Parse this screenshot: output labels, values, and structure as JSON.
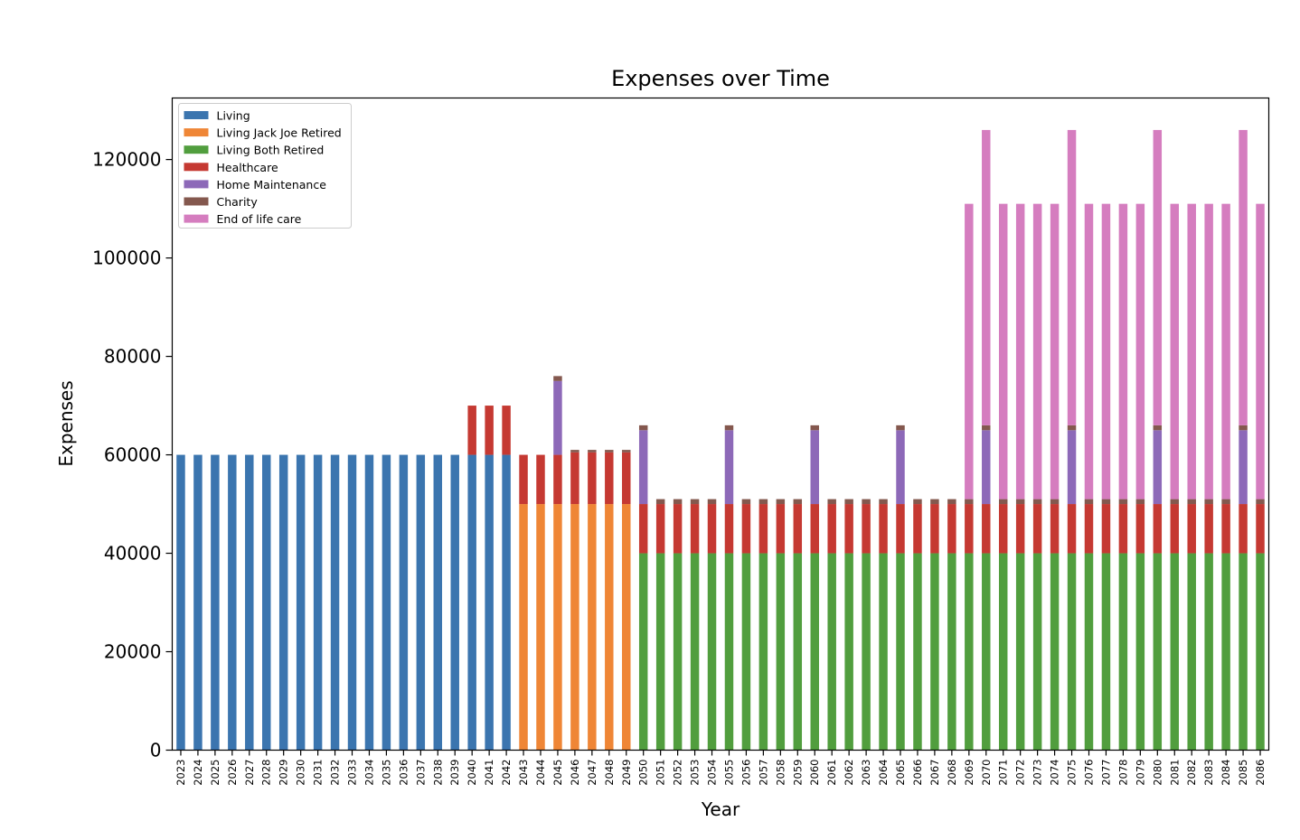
{
  "chart_data": {
    "type": "bar",
    "stacked": true,
    "title": "Expenses over Time",
    "xlabel": "Year",
    "ylabel": "Expenses",
    "ylim": [
      0,
      132500
    ],
    "yticks": [
      0,
      20000,
      40000,
      60000,
      80000,
      100000,
      120000
    ],
    "grid": false,
    "legend_position": "top-left",
    "categories": [
      "2023",
      "2024",
      "2025",
      "2026",
      "2027",
      "2028",
      "2029",
      "2030",
      "2031",
      "2032",
      "2033",
      "2034",
      "2035",
      "2036",
      "2037",
      "2038",
      "2039",
      "2040",
      "2041",
      "2042",
      "2043",
      "2044",
      "2045",
      "2046",
      "2047",
      "2048",
      "2049",
      "2050",
      "2051",
      "2052",
      "2053",
      "2054",
      "2055",
      "2056",
      "2057",
      "2058",
      "2059",
      "2060",
      "2061",
      "2062",
      "2063",
      "2064",
      "2065",
      "2066",
      "2067",
      "2068",
      "2069",
      "2070",
      "2071",
      "2072",
      "2073",
      "2074",
      "2075",
      "2076",
      "2077",
      "2078",
      "2079",
      "2080",
      "2081",
      "2082",
      "2083",
      "2084",
      "2085",
      "2086"
    ],
    "series": [
      {
        "name": "Living",
        "color": "#3b75af",
        "values": [
          60000,
          60000,
          60000,
          60000,
          60000,
          60000,
          60000,
          60000,
          60000,
          60000,
          60000,
          60000,
          60000,
          60000,
          60000,
          60000,
          60000,
          60000,
          60000,
          60000,
          0,
          0,
          0,
          0,
          0,
          0,
          0,
          0,
          0,
          0,
          0,
          0,
          0,
          0,
          0,
          0,
          0,
          0,
          0,
          0,
          0,
          0,
          0,
          0,
          0,
          0,
          0,
          0,
          0,
          0,
          0,
          0,
          0,
          0,
          0,
          0,
          0,
          0,
          0,
          0,
          0,
          0,
          0,
          0
        ]
      },
      {
        "name": "Living Jack Joe Retired",
        "color": "#ef8636",
        "values": [
          0,
          0,
          0,
          0,
          0,
          0,
          0,
          0,
          0,
          0,
          0,
          0,
          0,
          0,
          0,
          0,
          0,
          0,
          0,
          0,
          50000,
          50000,
          50000,
          50000,
          50000,
          50000,
          50000,
          0,
          0,
          0,
          0,
          0,
          0,
          0,
          0,
          0,
          0,
          0,
          0,
          0,
          0,
          0,
          0,
          0,
          0,
          0,
          0,
          0,
          0,
          0,
          0,
          0,
          0,
          0,
          0,
          0,
          0,
          0,
          0,
          0,
          0,
          0,
          0,
          0
        ]
      },
      {
        "name": "Living Both Retired",
        "color": "#519e3e",
        "values": [
          0,
          0,
          0,
          0,
          0,
          0,
          0,
          0,
          0,
          0,
          0,
          0,
          0,
          0,
          0,
          0,
          0,
          0,
          0,
          0,
          0,
          0,
          0,
          0,
          0,
          0,
          0,
          40000,
          40000,
          40000,
          40000,
          40000,
          40000,
          40000,
          40000,
          40000,
          40000,
          40000,
          40000,
          40000,
          40000,
          40000,
          40000,
          40000,
          40000,
          40000,
          40000,
          40000,
          40000,
          40000,
          40000,
          40000,
          40000,
          40000,
          40000,
          40000,
          40000,
          40000,
          40000,
          40000,
          40000,
          40000,
          40000,
          40000
        ]
      },
      {
        "name": "Healthcare",
        "color": "#c53932",
        "values": [
          0,
          0,
          0,
          0,
          0,
          0,
          0,
          0,
          0,
          0,
          0,
          0,
          0,
          0,
          0,
          0,
          0,
          10000,
          10000,
          10000,
          10000,
          10000,
          10000,
          10500,
          10500,
          10500,
          10500,
          10000,
          10000,
          10000,
          10000,
          10000,
          10000,
          10000,
          10000,
          10000,
          10000,
          10000,
          10000,
          10000,
          10000,
          10000,
          10000,
          10000,
          10000,
          10000,
          10000,
          10000,
          10000,
          10000,
          10000,
          10000,
          10000,
          10000,
          10000,
          10000,
          10000,
          10000,
          10000,
          10000,
          10000,
          10000,
          10000,
          10000
        ]
      },
      {
        "name": "Home Maintenance",
        "color": "#8d69b8",
        "values": [
          0,
          0,
          0,
          0,
          0,
          0,
          0,
          0,
          0,
          0,
          0,
          0,
          0,
          0,
          0,
          0,
          0,
          0,
          0,
          0,
          0,
          0,
          15000,
          0,
          0,
          0,
          0,
          15000,
          0,
          0,
          0,
          0,
          15000,
          0,
          0,
          0,
          0,
          15000,
          0,
          0,
          0,
          0,
          15000,
          0,
          0,
          0,
          0,
          15000,
          0,
          0,
          0,
          0,
          15000,
          0,
          0,
          0,
          0,
          15000,
          0,
          0,
          0,
          0,
          15000,
          0
        ]
      },
      {
        "name": "Charity",
        "color": "#84584e",
        "values": [
          0,
          0,
          0,
          0,
          0,
          0,
          0,
          0,
          0,
          0,
          0,
          0,
          0,
          0,
          0,
          0,
          0,
          0,
          0,
          0,
          0,
          0,
          1000,
          500,
          500,
          500,
          500,
          1000,
          1000,
          1000,
          1000,
          1000,
          1000,
          1000,
          1000,
          1000,
          1000,
          1000,
          1000,
          1000,
          1000,
          1000,
          1000,
          1000,
          1000,
          1000,
          1000,
          1000,
          1000,
          1000,
          1000,
          1000,
          1000,
          1000,
          1000,
          1000,
          1000,
          1000,
          1000,
          1000,
          1000,
          1000,
          1000,
          1000
        ]
      },
      {
        "name": "End of life care",
        "color": "#d57dbf",
        "values": [
          0,
          0,
          0,
          0,
          0,
          0,
          0,
          0,
          0,
          0,
          0,
          0,
          0,
          0,
          0,
          0,
          0,
          0,
          0,
          0,
          0,
          0,
          0,
          0,
          0,
          0,
          0,
          0,
          0,
          0,
          0,
          0,
          0,
          0,
          0,
          0,
          0,
          0,
          0,
          0,
          0,
          0,
          0,
          0,
          0,
          0,
          60000,
          60000,
          60000,
          60000,
          60000,
          60000,
          60000,
          60000,
          60000,
          60000,
          60000,
          60000,
          60000,
          60000,
          60000,
          60000,
          60000,
          60000
        ]
      }
    ]
  }
}
